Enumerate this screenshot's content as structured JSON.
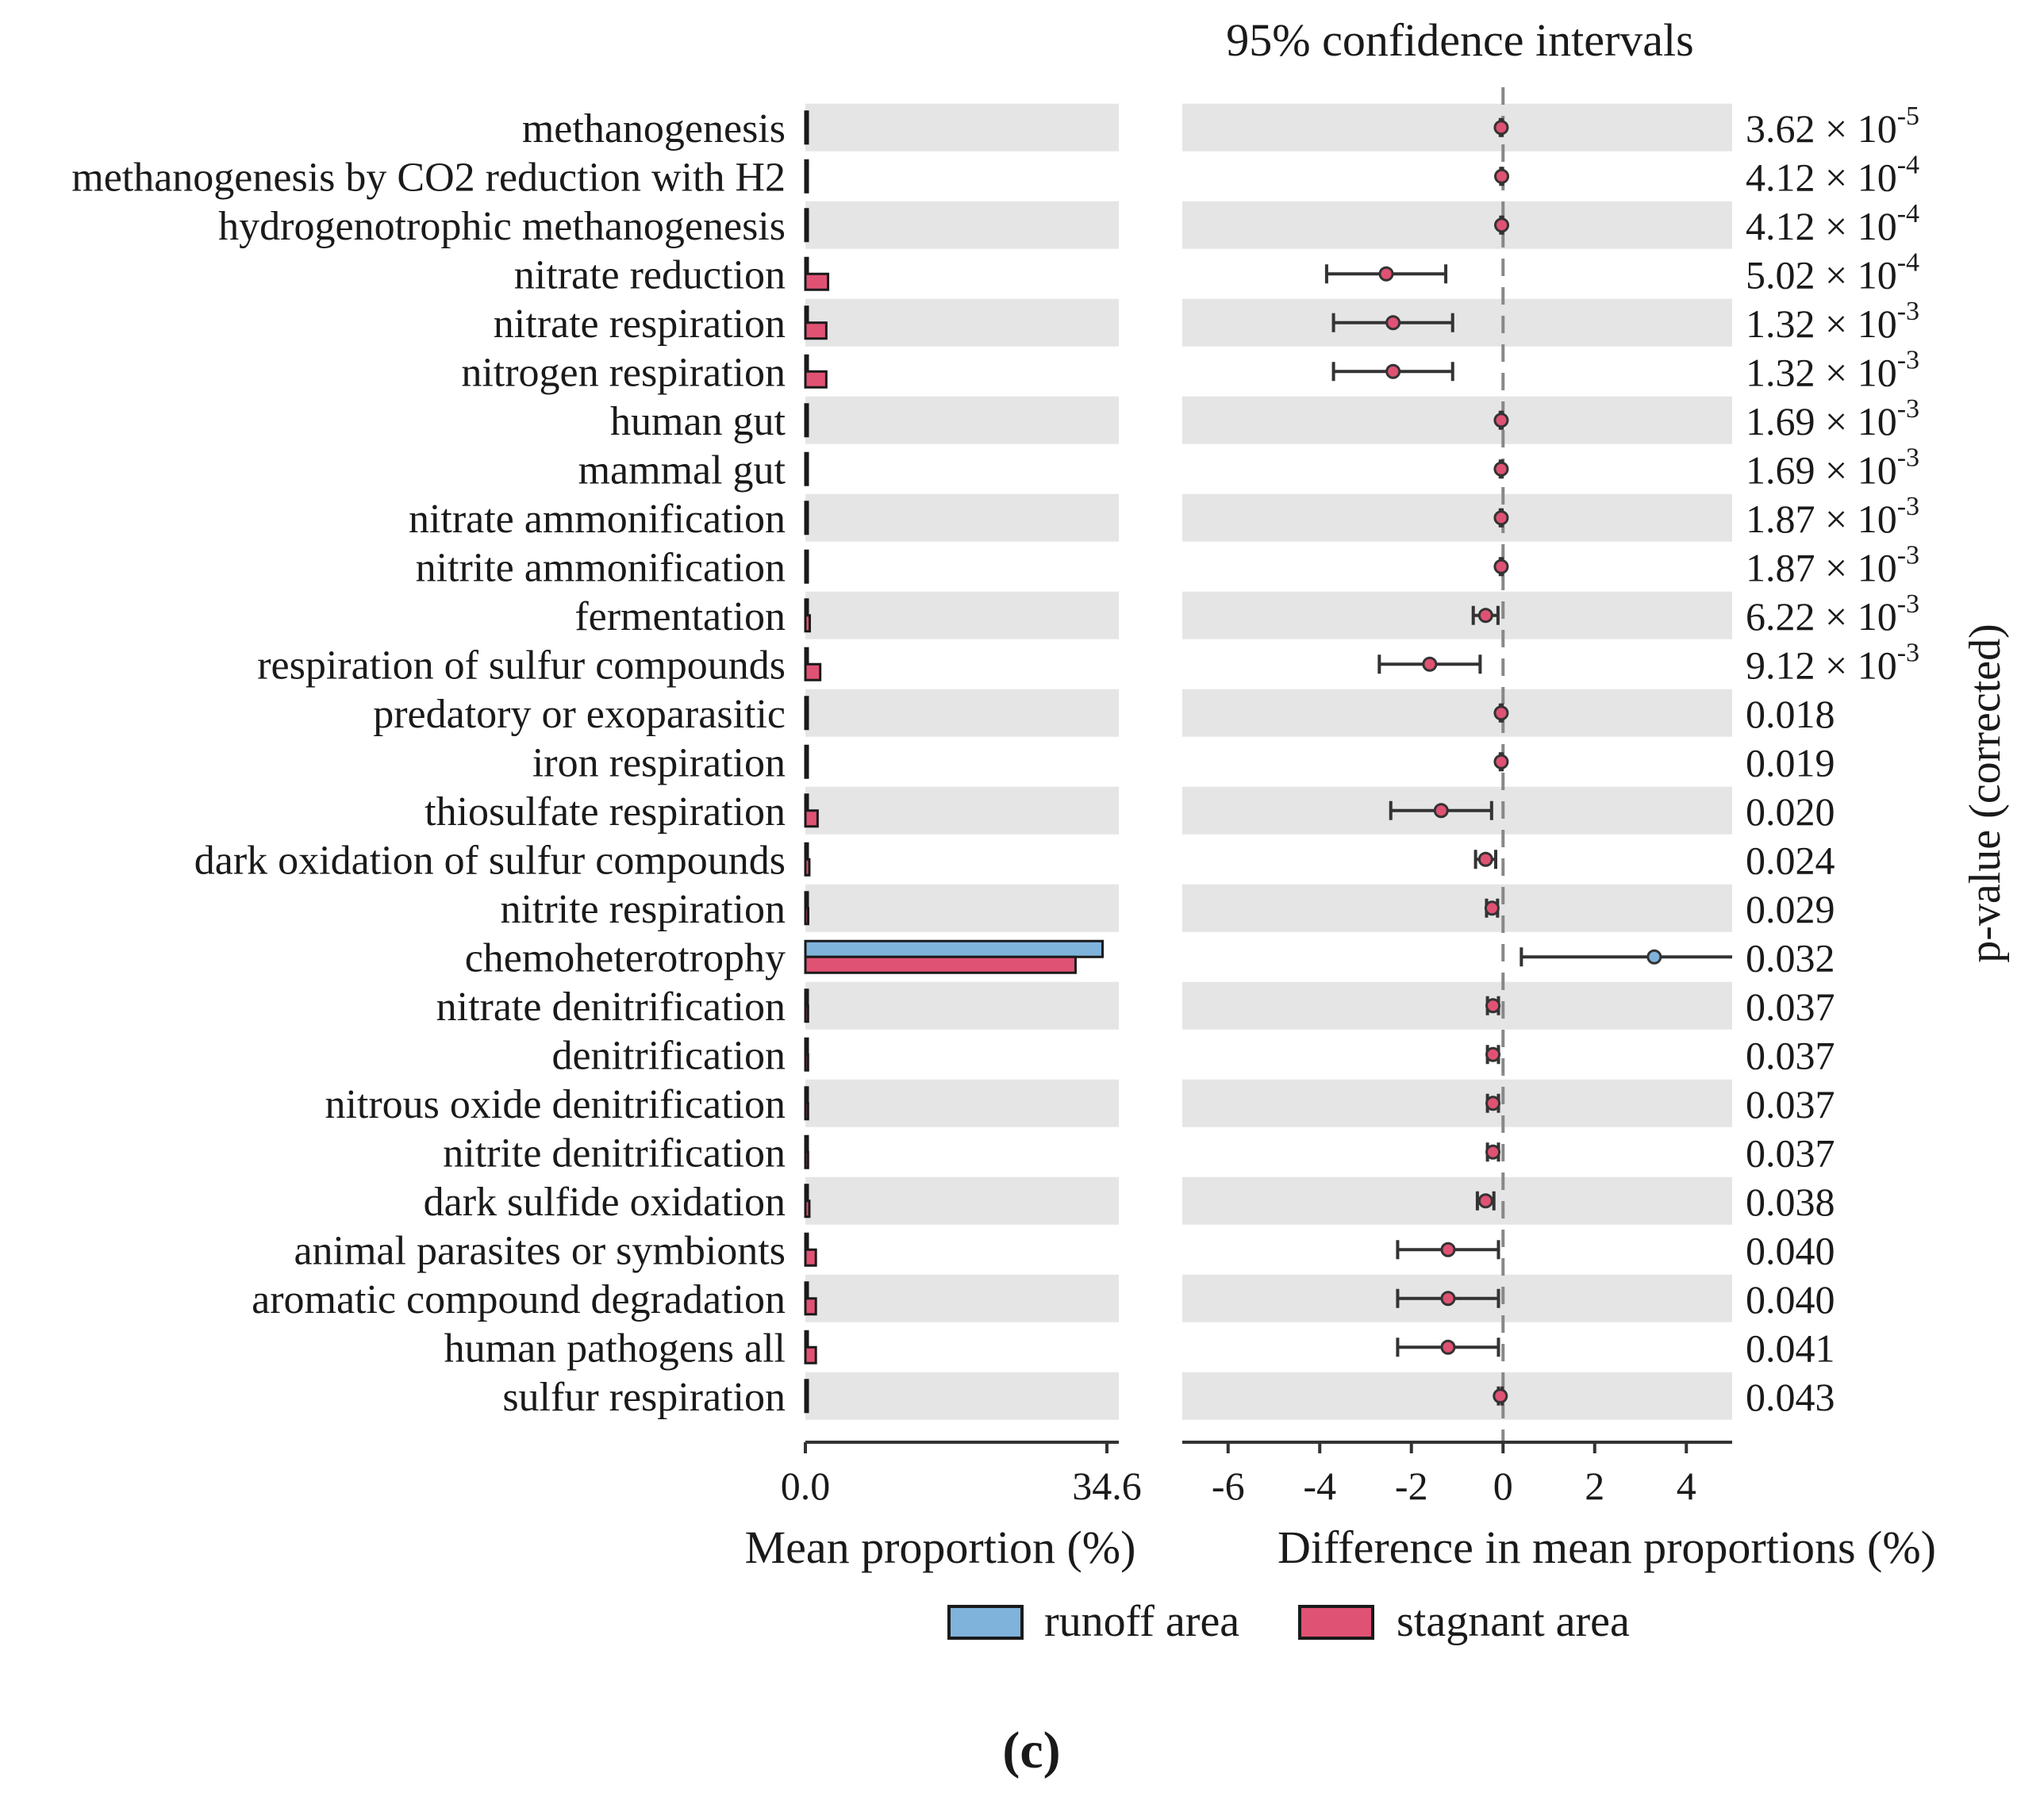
{
  "chart_data": {
    "type": "extended-error-bar",
    "title": "95% confidence intervals",
    "panel_label": "(c)",
    "categories": [
      "methanogenesis",
      "methanogenesis by CO2 reduction with H2",
      "hydrogenotrophic methanogenesis",
      "nitrate reduction",
      "nitrate respiration",
      "nitrogen respiration",
      "human gut",
      "mammal gut",
      "nitrate ammonification",
      "nitrite ammonification",
      "fermentation",
      "respiration of sulfur compounds",
      "predatory or exoparasitic",
      "iron respiration",
      "thiosulfate respiration",
      "dark oxidation of sulfur compounds",
      "nitrite respiration",
      "chemoheterotrophy",
      "nitrate denitrification",
      "denitrification",
      "nitrous oxide denitrification",
      "nitrite denitrification",
      "dark sulfide oxidation",
      "animal parasites or symbionts",
      "aromatic compound degradation",
      "human pathogens all",
      "sulfur respiration"
    ],
    "p_values": [
      "3.62 × 10-5",
      "4.12 × 10-4",
      "4.12 × 10-4",
      "5.02 × 10-4",
      "1.32 × 10-3",
      "1.32 × 10-3",
      "1.69 × 10-3",
      "1.69 × 10-3",
      "1.87 × 10-3",
      "1.87 × 10-3",
      "6.22 × 10-3",
      "9.12 × 10-3",
      "0.018",
      "0.019",
      "0.020",
      "0.024",
      "0.029",
      "0.032",
      "0.037",
      "0.037",
      "0.037",
      "0.037",
      "0.038",
      "0.040",
      "0.040",
      "0.041",
      "0.043"
    ],
    "series": [
      {
        "name": "runoff area",
        "color": "#7fb3dc",
        "values": [
          0.01,
          0.01,
          0.01,
          0.02,
          0.02,
          0.02,
          0.01,
          0.01,
          0.01,
          0.01,
          0.12,
          0.02,
          0.01,
          0.01,
          0.02,
          0.05,
          0.06,
          34.1,
          0.04,
          0.04,
          0.04,
          0.04,
          0.06,
          0.05,
          0.05,
          0.05,
          0.01
        ]
      },
      {
        "name": "stagnant area",
        "color": "#e05273",
        "values": [
          0.05,
          0.04,
          0.04,
          2.6,
          2.4,
          2.4,
          0.05,
          0.05,
          0.05,
          0.05,
          0.5,
          1.7,
          0.05,
          0.05,
          1.4,
          0.45,
          0.32,
          31.0,
          0.3,
          0.3,
          0.3,
          0.3,
          0.45,
          1.2,
          1.2,
          1.2,
          0.06
        ]
      }
    ],
    "differences": [
      {
        "est": -0.04,
        "lo": -0.06,
        "hi": -0.02
      },
      {
        "est": -0.03,
        "lo": -0.05,
        "hi": -0.01
      },
      {
        "est": -0.03,
        "lo": -0.05,
        "hi": -0.01
      },
      {
        "est": -2.55,
        "lo": -3.85,
        "hi": -1.25
      },
      {
        "est": -2.4,
        "lo": -3.7,
        "hi": -1.1
      },
      {
        "est": -2.4,
        "lo": -3.7,
        "hi": -1.1
      },
      {
        "est": -0.04,
        "lo": -0.06,
        "hi": -0.02
      },
      {
        "est": -0.04,
        "lo": -0.06,
        "hi": -0.02
      },
      {
        "est": -0.04,
        "lo": -0.06,
        "hi": -0.02
      },
      {
        "est": -0.04,
        "lo": -0.06,
        "hi": -0.02
      },
      {
        "est": -0.38,
        "lo": -0.65,
        "hi": -0.11
      },
      {
        "est": -1.6,
        "lo": -2.7,
        "hi": -0.5
      },
      {
        "est": -0.04,
        "lo": -0.06,
        "hi": -0.02
      },
      {
        "est": -0.04,
        "lo": -0.06,
        "hi": -0.02
      },
      {
        "est": -1.35,
        "lo": -2.45,
        "hi": -0.25
      },
      {
        "est": -0.38,
        "lo": -0.6,
        "hi": -0.16
      },
      {
        "est": -0.24,
        "lo": -0.36,
        "hi": -0.12
      },
      {
        "est": 3.3,
        "lo": 0.4,
        "hi": 5.0
      },
      {
        "est": -0.22,
        "lo": -0.34,
        "hi": -0.1
      },
      {
        "est": -0.22,
        "lo": -0.34,
        "hi": -0.1
      },
      {
        "est": -0.22,
        "lo": -0.34,
        "hi": -0.1
      },
      {
        "est": -0.22,
        "lo": -0.34,
        "hi": -0.1
      },
      {
        "est": -0.38,
        "lo": -0.56,
        "hi": -0.2
      },
      {
        "est": -1.2,
        "lo": -2.3,
        "hi": -0.1
      },
      {
        "est": -1.2,
        "lo": -2.3,
        "hi": -0.1
      },
      {
        "est": -1.2,
        "lo": -2.3,
        "hi": -0.1
      },
      {
        "est": -0.06,
        "lo": -0.1,
        "hi": -0.02
      }
    ],
    "left_axis": {
      "xlabel": "Mean proportion (%)",
      "range": [
        0,
        34.6
      ],
      "tick_labels": [
        "0.0",
        "34.6"
      ]
    },
    "right_axis": {
      "xlabel": "Difference in mean proportions (%)",
      "range": [
        -7,
        5
      ],
      "ticks": [
        -6,
        -4,
        -2,
        0,
        2,
        4
      ],
      "tick_labels": [
        "-6",
        "-4",
        "-2",
        "0",
        "2",
        "4"
      ]
    },
    "p_label": "p-value (corrected)",
    "legend_position": "bottom-center"
  }
}
